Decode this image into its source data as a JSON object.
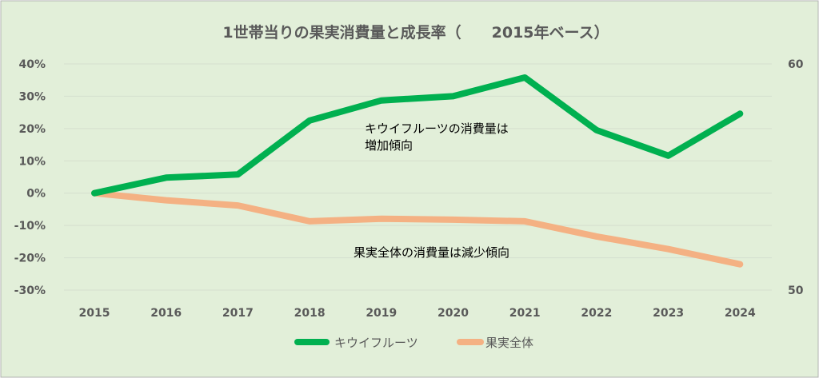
{
  "colors": {
    "background": "#e2efd9",
    "frame": "#b0b0b0",
    "grid": "#d5dfce",
    "kiwi": "#00b050",
    "total": "#f4b183"
  },
  "chart_data": {
    "type": "line",
    "title": "1世帯当りの果実消費量と成長率（　　2015年ベース）",
    "categories": [
      "2015",
      "2016",
      "2017",
      "2018",
      "2019",
      "2020",
      "2021",
      "2022",
      "2023",
      "2024"
    ],
    "y_left": {
      "ticks": [
        "40%",
        "30%",
        "20%",
        "10%",
        "0%",
        "-10%",
        "-20%",
        "-30%"
      ],
      "range": [
        -30,
        40
      ]
    },
    "y_right": {
      "ticks": [
        "60",
        "50"
      ],
      "range": [
        50,
        60
      ]
    },
    "series": [
      {
        "name": "キウイフルーツ",
        "values": [
          0,
          4.8,
          5.8,
          22.5,
          28.7,
          30.0,
          35.8,
          19.5,
          11.6,
          24.6
        ]
      },
      {
        "name": "果実全体",
        "values": [
          0,
          -2.2,
          -3.8,
          -8.7,
          -7.9,
          -8.2,
          -8.7,
          -13.4,
          -17.3,
          -22.0
        ]
      }
    ],
    "annotations": [
      {
        "lines": [
          "キウイフルーツの消費量は",
          "増加傾向"
        ]
      },
      {
        "lines": [
          "果実全体の消費量は減少傾向"
        ]
      }
    ],
    "grid": true,
    "legend_position": "bottom"
  }
}
